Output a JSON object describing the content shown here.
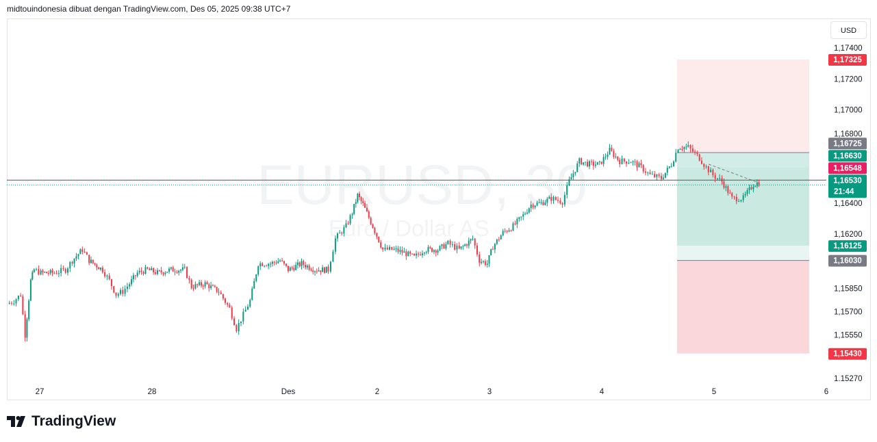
{
  "header": {
    "caption": "midtouindonesia dibuat dengan TradingView.com, Des 05, 2025 09:38 UTC+7"
  },
  "watermark": {
    "symbol": "EURUSD, 30",
    "name": "Euro / Dollar AS"
  },
  "axis": {
    "currency": "USD"
  },
  "brand": {
    "name": "TradingView"
  },
  "colors": {
    "up": "#089981",
    "down": "#f23645",
    "grey": "#787b86",
    "pink": "#e91e63"
  },
  "chart_data": {
    "type": "candlestick",
    "ylim": [
      1.1527,
      1.1745
    ],
    "y_ticks": [
      {
        "v": 1.174,
        "t": "1,17400"
      },
      {
        "v": 1.172,
        "t": "1,17200"
      },
      {
        "v": 1.17,
        "t": "1,17000"
      },
      {
        "v": 1.168,
        "t": "1,16800"
      },
      {
        "v": 1.164,
        "t": "1,16400"
      },
      {
        "v": 1.162,
        "t": "1,16200"
      },
      {
        "v": 1.1585,
        "t": "1,15850"
      },
      {
        "v": 1.157,
        "t": "1,15700"
      },
      {
        "v": 1.1555,
        "t": "1,15550"
      },
      {
        "v": 1.1527,
        "t": "1.15270"
      }
    ],
    "x_ticks": [
      "27",
      "28",
      "Des",
      "2",
      "3",
      "4",
      "5",
      "6"
    ],
    "price_path": [
      [
        -0.29,
        1.1575
      ],
      [
        -0.23,
        1.1577
      ],
      [
        -0.17,
        1.1581
      ],
      [
        -0.13,
        1.1555
      ],
      [
        -0.08,
        1.159
      ],
      [
        -0.05,
        1.1597
      ],
      [
        0.01,
        1.1595
      ],
      [
        0.13,
        1.1595
      ],
      [
        0.23,
        1.1597
      ],
      [
        0.29,
        1.1603
      ],
      [
        0.38,
        1.161
      ],
      [
        0.44,
        1.1603
      ],
      [
        0.56,
        1.1597
      ],
      [
        0.62,
        1.159
      ],
      [
        0.68,
        1.1581
      ],
      [
        0.74,
        1.1583
      ],
      [
        0.8,
        1.1588
      ],
      [
        0.87,
        1.1595
      ],
      [
        0.96,
        1.1597
      ],
      [
        1.04,
        1.1595
      ],
      [
        1.14,
        1.1597
      ],
      [
        1.24,
        1.1597
      ],
      [
        1.29,
        1.1586
      ],
      [
        1.39,
        1.1588
      ],
      [
        1.49,
        1.1583
      ],
      [
        1.57,
        1.1572
      ],
      [
        1.62,
        1.1559
      ],
      [
        1.67,
        1.1568
      ],
      [
        1.72,
        1.1577
      ],
      [
        1.78,
        1.1601
      ],
      [
        1.87,
        1.1601
      ],
      [
        1.94,
        1.1603
      ],
      [
        2.0,
        1.1597
      ],
      [
        2.15,
        1.1601
      ],
      [
        2.3,
        1.1597
      ],
      [
        2.45,
        1.1597
      ],
      [
        2.53,
        1.1617
      ],
      [
        2.65,
        1.1625
      ],
      [
        2.72,
        1.1634
      ],
      [
        2.78,
        1.1645
      ],
      [
        2.84,
        1.1639
      ],
      [
        2.95,
        1.1625
      ],
      [
        3.05,
        1.161
      ],
      [
        3.15,
        1.161
      ],
      [
        3.24,
        1.1608
      ],
      [
        3.33,
        1.1605
      ],
      [
        3.42,
        1.161
      ],
      [
        3.54,
        1.161
      ],
      [
        3.63,
        1.1614
      ],
      [
        3.73,
        1.161
      ],
      [
        3.85,
        1.1617
      ],
      [
        3.91,
        1.1603
      ],
      [
        3.98,
        1.1601
      ],
      [
        4.03,
        1.1612
      ],
      [
        4.12,
        1.1621
      ],
      [
        4.21,
        1.1625
      ],
      [
        4.3,
        1.1632
      ],
      [
        4.37,
        1.1639
      ],
      [
        4.46,
        1.164
      ],
      [
        4.55,
        1.1643
      ],
      [
        4.65,
        1.1641
      ],
      [
        4.71,
        1.1654
      ],
      [
        4.8,
        1.1667
      ],
      [
        4.89,
        1.1665
      ],
      [
        4.98,
        1.1665
      ],
      [
        5.07,
        1.1674
      ],
      [
        5.16,
        1.1667
      ],
      [
        5.26,
        1.1667
      ],
      [
        5.35,
        1.1663
      ],
      [
        5.43,
        1.1658
      ],
      [
        5.53,
        1.1656
      ],
      [
        5.62,
        1.1665
      ],
      [
        5.68,
        1.1676
      ],
      [
        5.77,
        1.1676
      ],
      [
        5.87,
        1.1669
      ],
      [
        5.93,
        1.1663
      ],
      [
        5.99,
        1.1658
      ],
      [
        6.07,
        1.1654
      ],
      [
        6.16,
        1.1643
      ],
      [
        6.26,
        1.1643
      ],
      [
        6.35,
        1.1652
      ],
      [
        6.4,
        1.1653
      ]
    ],
    "horizontal_lines": [
      {
        "price": 1.16548,
        "label": "1,16548",
        "color": "#e91e63"
      },
      {
        "price": 1.1653,
        "label": "1,16530",
        "countdown": "21:44",
        "color": "#089981"
      }
    ],
    "position_tool": {
      "stop": 1.17325,
      "entry_a": 1.16725,
      "entry_b": 1.1663,
      "target_a": 1.16125,
      "target_b": 1.1603,
      "stop_b": 1.1543
    },
    "price_labels": [
      {
        "v": 1.17325,
        "t": "1,17325",
        "c": "#f23645"
      },
      {
        "v": 1.16725,
        "t": "1,16725",
        "c": "#787b86"
      },
      {
        "v": 1.1663,
        "t": "1,16630",
        "c": "#089981"
      },
      {
        "v": 1.16125,
        "t": "1,16125",
        "c": "#089981"
      },
      {
        "v": 1.1603,
        "t": "1,16030",
        "c": "#787b86"
      },
      {
        "v": 1.1543,
        "t": "1,15430",
        "c": "#f23645"
      }
    ]
  }
}
